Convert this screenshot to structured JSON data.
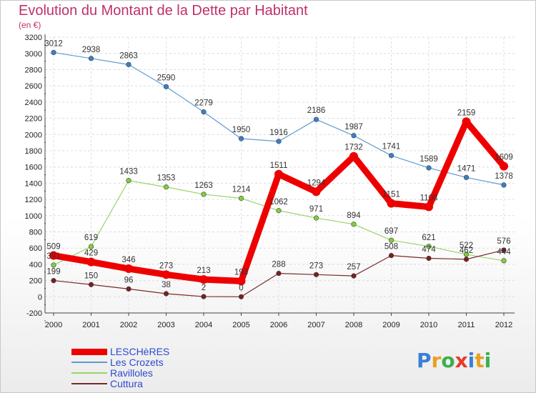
{
  "title": "Evolution du Montant de la Dette par Habitant",
  "subtitle": "(en €)",
  "logo": {
    "text": "Proxiti",
    "letters": [
      {
        "ch": "P",
        "color": "#3a7fd8"
      },
      {
        "ch": "r",
        "color": "#e8a020"
      },
      {
        "ch": "o",
        "color": "#3cae4e"
      },
      {
        "ch": "x",
        "color": "#e63a2a"
      },
      {
        "ch": "i",
        "color": "#3a7fd8"
      },
      {
        "ch": "t",
        "color": "#e8a020"
      },
      {
        "ch": "i",
        "color": "#3cae4e"
      }
    ]
  },
  "chart_data": {
    "type": "line",
    "x": [
      "2000",
      "2001",
      "2002",
      "2003",
      "2004",
      "2005",
      "2006",
      "2007",
      "2008",
      "2009",
      "2010",
      "2011",
      "2012"
    ],
    "yticks": [
      "-200",
      "0",
      "200",
      "400",
      "600",
      "800",
      "1000",
      "1200",
      "1400",
      "1600",
      "1800",
      "2000",
      "2200",
      "2400",
      "2600",
      "2800",
      "3000",
      "3200"
    ],
    "ylim": [
      -200,
      3200
    ],
    "grid": true,
    "series": [
      {
        "name": "LESCHèRES",
        "color": "#ee0000",
        "width": 9,
        "marker_fill": "#ee0000",
        "values": [
          509,
          429,
          346,
          273,
          213,
          193,
          1511,
          1294,
          1732,
          1151,
          1108,
          2159,
          1609
        ],
        "labels": [
          "509",
          "429",
          "346",
          "273",
          "213",
          "193",
          "1511",
          "1294",
          "1732",
          "1151",
          "1108",
          "2159",
          "1609"
        ]
      },
      {
        "name": "Les Crozets",
        "color": "#5e9bd2",
        "width": 1.2,
        "marker_fill": "#3a7fc8",
        "values": [
          3012,
          2938,
          2863,
          2590,
          2279,
          1950,
          1916,
          2186,
          1987,
          1741,
          1589,
          1471,
          1378
        ],
        "labels": [
          "3012",
          "2938",
          "2863",
          "2590",
          "2279",
          "1950",
          "1916",
          "2186",
          "1987",
          "1741",
          "1589",
          "1471",
          "1378"
        ]
      },
      {
        "name": "Ravilloles",
        "color": "#9ad36a",
        "width": 1.2,
        "marker_fill": "#7fcf3a",
        "values": [
          391,
          619,
          1433,
          1353,
          1263,
          1214,
          1062,
          971,
          894,
          697,
          621,
          522,
          444
        ],
        "labels": [
          "391",
          "619",
          "1433",
          "1353",
          "1263",
          "1214",
          "1062",
          "971",
          "894",
          "697",
          "621",
          "522",
          "444"
        ]
      },
      {
        "name": "Cuttura",
        "color": "#7a2a2a",
        "width": 1.2,
        "marker_fill": "#7a1f1f",
        "values": [
          199,
          150,
          96,
          38,
          2,
          0,
          288,
          273,
          257,
          508,
          474,
          462,
          576
        ],
        "labels": [
          "199",
          "150",
          "96",
          "38",
          "2",
          "0",
          "288",
          "273",
          "257",
          "508",
          "474",
          "462",
          "576"
        ]
      }
    ]
  }
}
